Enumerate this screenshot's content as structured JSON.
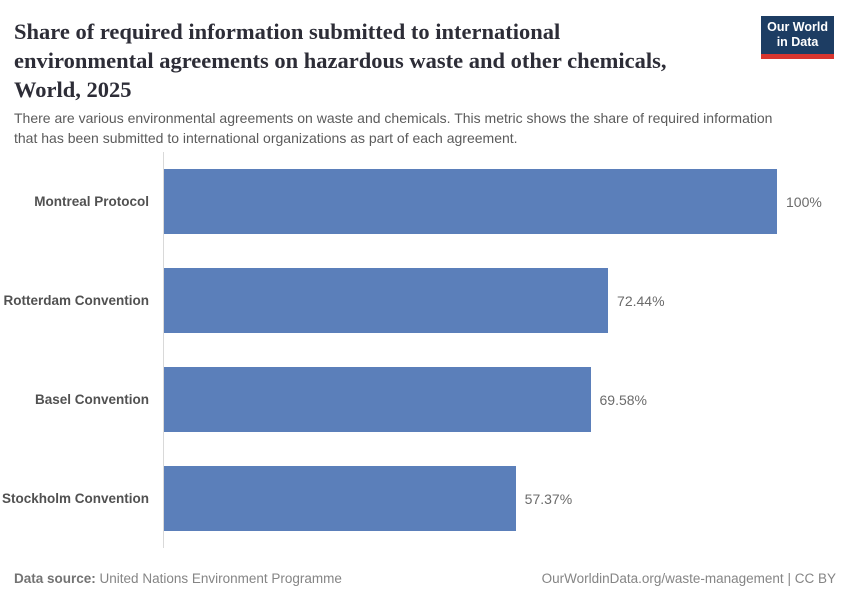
{
  "header": {
    "title": "Share of required information submitted to international\nenvironmental agreements on hazardous waste and other chemicals,\nWorld, 2025",
    "subtitle": "There are various environmental agreements on waste and chemicals. This metric shows the share of required information\nthat has been submitted to international organizations as part of each agreement.",
    "logo_text": "Our World\nin Data"
  },
  "colors": {
    "bar": "#5b7fba",
    "logo_background": "#1d3d63",
    "logo_red_stripe": "#d8352e",
    "title_text": "#2d2d37",
    "subtitle_text": "#5b5b5b",
    "axis_line": "#d9d9d9",
    "category_label_text": "#515151",
    "value_label_text": "#6b6b6b",
    "footer_text": "#858585"
  },
  "chart_data": {
    "type": "bar",
    "orientation": "horizontal",
    "title": "Share of required information submitted to international environmental agreements on hazardous waste and other chemicals, World, 2025",
    "subtitle": "There are various environmental agreements on waste and chemicals. This metric shows the share of required information that has been submitted to international organizations as part of each agreement.",
    "categories": [
      "Montreal Protocol",
      "Rotterdam Convention",
      "Basel Convention",
      "Stockholm Convention"
    ],
    "values": [
      100,
      72.44,
      69.58,
      57.37
    ],
    "value_labels": [
      "100%",
      "72.44%",
      "69.58%",
      "57.37%"
    ],
    "unit": "%",
    "xlim": [
      0,
      100
    ],
    "grid": false,
    "legend": "none",
    "bar_color": "#5b7fba",
    "source": "United Nations Environment Programme"
  },
  "footer": {
    "datasource_label": "Data source:",
    "datasource_value": "United Nations Environment Programme",
    "link": "OurWorldinData.org/waste-management",
    "separator": "|",
    "license": "CC BY"
  }
}
